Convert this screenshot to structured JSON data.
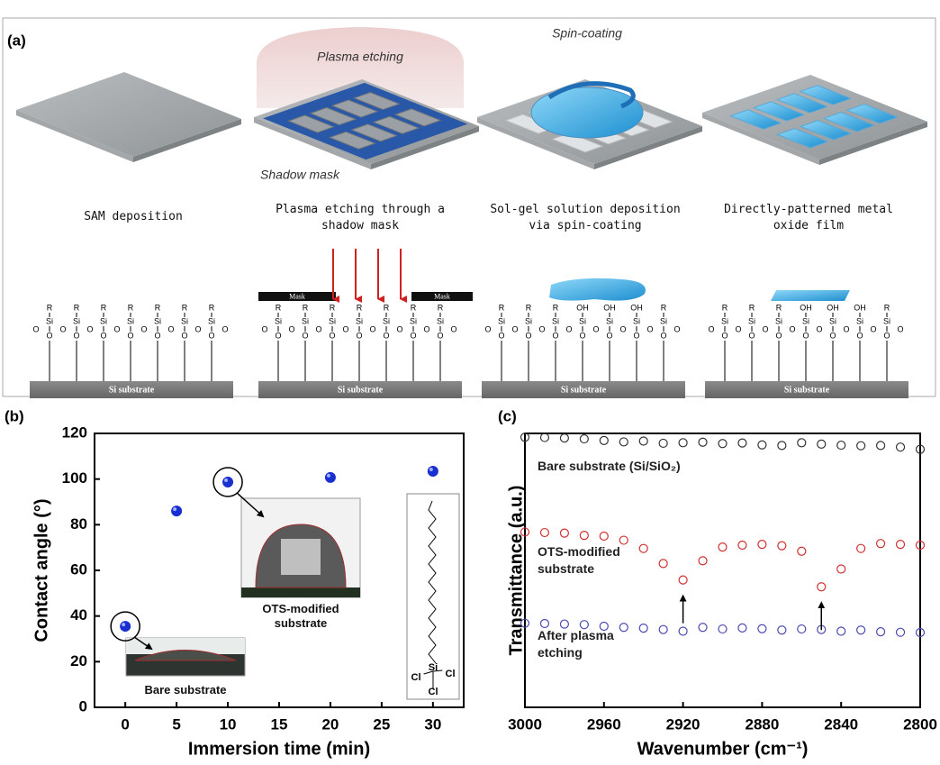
{
  "panel_a": {
    "panel_label": "(a)",
    "image_labels": {
      "plasma": "Plasma etching",
      "mask": "Shadow mask",
      "spin": "Spin-coating"
    },
    "steps": [
      "SAM deposition",
      "Plasma etching through a shadow mask",
      "Sol-gel solution deposition via spin-coating",
      "Directly-patterned metal oxide film"
    ],
    "molecule": {
      "r": "R",
      "si": "Si",
      "o": "O",
      "oh": "OH",
      "mask": "Mask",
      "substrate": "Si substrate"
    }
  },
  "chart_data": [
    {
      "type": "scatter",
      "panel_label": "(b)",
      "x_label": "Immersion time (min)",
      "y_label": "Contact angle (°)",
      "x": [
        0,
        5,
        10,
        20,
        30
      ],
      "values": [
        35.5,
        86,
        98.7,
        100.7,
        103.4
      ],
      "color": "#1a2fd0",
      "xlim": [
        -3,
        33
      ],
      "ylim": [
        0,
        120
      ],
      "xticks": [
        0,
        5,
        10,
        15,
        20,
        25,
        30
      ],
      "yticks": [
        0,
        20,
        40,
        60,
        80,
        100,
        120
      ],
      "annotations": [
        "Bare substrate",
        "OTS-modified substrate"
      ],
      "inset_labels": {
        "si": "Si",
        "cl": "Cl"
      }
    },
    {
      "type": "line",
      "panel_label": "(c)",
      "x_label": "Wavenumber (cm⁻¹)",
      "y_label": "Transmittance (a.u.)",
      "x": [
        3000,
        2990,
        2980,
        2970,
        2960,
        2950,
        2940,
        2930,
        2920,
        2910,
        2900,
        2890,
        2880,
        2870,
        2860,
        2850,
        2840,
        2830,
        2820,
        2810,
        2800
      ],
      "series": [
        {
          "name": "Bare substrate (Si/SiO₂)",
          "color": "#333333",
          "values": [
            98.6,
            98.5,
            98.3,
            98.0,
            97.4,
            96.9,
            97.2,
            96.4,
            96.6,
            96.8,
            96.3,
            96.5,
            95.8,
            95.6,
            96.6,
            96.1,
            95.7,
            95.5,
            95.6,
            95.0,
            94.2
          ]
        },
        {
          "name": "OTS-modified substrate",
          "color": "#d03030",
          "values": [
            64,
            63.8,
            63.6,
            62.8,
            62.5,
            61,
            58,
            52.5,
            46.5,
            53.5,
            58.5,
            59.2,
            59.5,
            59,
            57,
            44,
            50.5,
            58,
            59.8,
            59.5,
            59.2
          ]
        },
        {
          "name": "After plasma etching",
          "color": "#4a4ab0",
          "values": [
            30.7,
            30.6,
            30.4,
            30.2,
            29.6,
            29.2,
            28.9,
            28.4,
            27.8,
            29.2,
            28.6,
            29.0,
            28.7,
            28.2,
            28.6,
            28.4,
            27.8,
            28.2,
            27.6,
            27.4,
            27.3
          ]
        }
      ],
      "xlim": [
        3000,
        2800
      ],
      "ylim": [
        0,
        100
      ],
      "xticks": [
        3000,
        2960,
        2920,
        2880,
        2840,
        2800
      ]
    }
  ]
}
